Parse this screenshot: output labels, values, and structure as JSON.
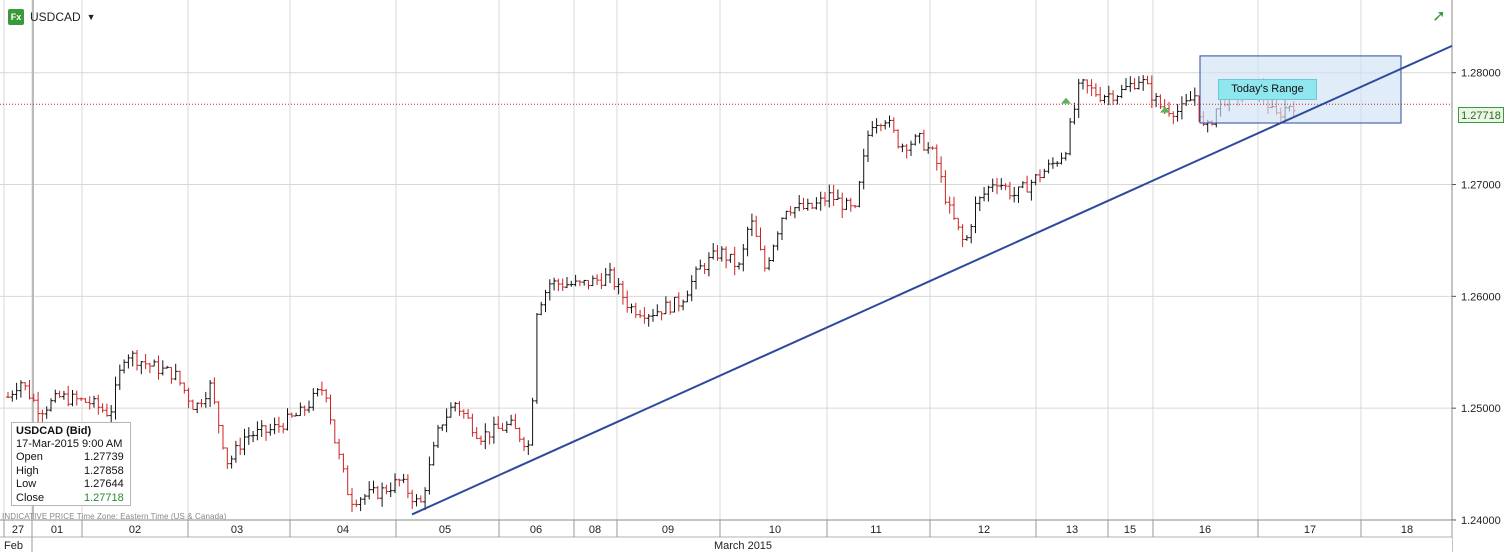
{
  "header": {
    "symbol_icon": "fx-icon",
    "symbol": "USDCAD",
    "dropdown_icon": "caret-down-icon",
    "expand_icon": "green-arrow-up-right-icon"
  },
  "info_box": {
    "title": "USDCAD (Bid)",
    "datetime": "17-Mar-2015 9:00 AM",
    "rows": [
      {
        "label": "Open",
        "value": "1.27739"
      },
      {
        "label": "High",
        "value": "1.27858"
      },
      {
        "label": "Low",
        "value": "1.27644"
      },
      {
        "label": "Close",
        "value": "1.27718"
      }
    ]
  },
  "footer_note": "INDICATIVE PRICE   Time Zone: Eastern Time (US & Canada)",
  "current_price_label": "1.27718",
  "range_label": "Today's Range",
  "colors": {
    "up_bar": "#111111",
    "down_bar": "#cc2222",
    "trendline": "#2e4a9e",
    "range_box": "#cfe2f5",
    "range_label_bg": "#8fe6ee",
    "price_line": "#c03030",
    "grid": "#d8d8d8",
    "marker": "#5ab55a"
  },
  "chart_data": {
    "type": "ohlc",
    "title": "USDCAD",
    "ylim": [
      1.24,
      1.2865
    ],
    "y_ticks": [
      "1.24000",
      "1.25000",
      "1.26000",
      "1.27000",
      "1.28000"
    ],
    "x_ticks": [
      "27",
      "01",
      "02",
      "03",
      "04",
      "05",
      "06",
      "08",
      "09",
      "10",
      "11",
      "12",
      "13",
      "15",
      "16",
      "17",
      "18"
    ],
    "x_month_labels": [
      "Feb",
      "March 2015"
    ],
    "grid": true,
    "current_price": 1.27718,
    "series_anchors": [
      {
        "day": "27",
        "price": 1.251
      },
      {
        "day": "01",
        "price": 1.2505
      },
      {
        "day": "02",
        "price": 1.2535
      },
      {
        "day": "03",
        "price": 1.2445
      },
      {
        "day": "04",
        "price": 1.242
      },
      {
        "day": "05",
        "price": 1.2485
      },
      {
        "day": "06",
        "price": 1.261
      },
      {
        "day": "08",
        "price": 1.259
      },
      {
        "day": "09",
        "price": 1.2615
      },
      {
        "day": "10",
        "price": 1.268
      },
      {
        "day": "11",
        "price": 1.2745
      },
      {
        "day": "12",
        "price": 1.266
      },
      {
        "day": "13",
        "price": 1.278
      },
      {
        "day": "15",
        "price": 1.277
      },
      {
        "day": "16",
        "price": 1.2775
      },
      {
        "day": "17",
        "price": 1.27718
      }
    ],
    "trendline": {
      "start": {
        "day": "04",
        "price": 1.2405
      },
      "end": {
        "day": "18",
        "price": 1.2824
      }
    },
    "todays_range": {
      "label": "Today's Range",
      "low": 1.2755,
      "high": 1.2815
    }
  }
}
